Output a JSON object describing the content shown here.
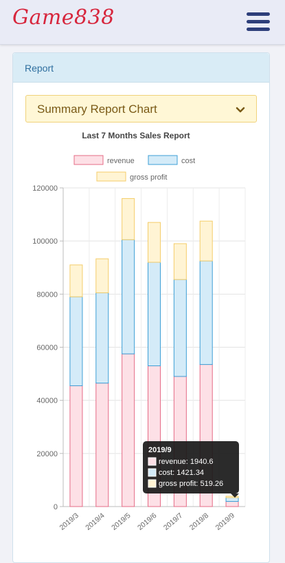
{
  "header": {
    "logo_text": "Game838",
    "menu_icon": "hamburger-menu-icon"
  },
  "panel": {
    "title": "Report"
  },
  "select": {
    "label": "Summary Report Chart",
    "icon": "chevron-down-icon"
  },
  "chart_data": {
    "type": "bar",
    "stacked": true,
    "title": "Last 7 Months Sales Report",
    "categories": [
      "2019/3",
      "2019/4",
      "2019/5",
      "2019/6",
      "2019/7",
      "2019/8",
      "2019/9"
    ],
    "series": [
      {
        "name": "revenue",
        "values": [
          45500,
          46500,
          57500,
          53000,
          49000,
          53500,
          1940.6
        ],
        "fill": "#fde0e6",
        "stroke": "#e56b86"
      },
      {
        "name": "cost",
        "values": [
          33500,
          34000,
          43000,
          39000,
          36500,
          39000,
          1421.34
        ],
        "fill": "#d4ebf8",
        "stroke": "#3d9fd6"
      },
      {
        "name": "gross profit",
        "values": [
          12000,
          12800,
          15500,
          15000,
          13500,
          15000,
          519.26
        ],
        "fill": "#fff4d4",
        "stroke": "#f4cd6a"
      }
    ],
    "y_ticks": [
      "0",
      "20000",
      "40000",
      "60000",
      "80000",
      "100000",
      "120000"
    ],
    "ylim": [
      0,
      120000
    ],
    "grid": true,
    "legend_position": "top",
    "tooltip": {
      "title": "2019/9",
      "lines": [
        "revenue: 1940.6",
        "cost: 1421.34",
        "gross profit: 519.26"
      ]
    }
  }
}
